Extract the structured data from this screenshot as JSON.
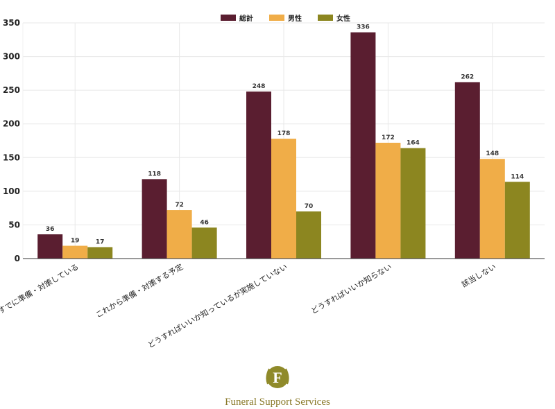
{
  "chart_data": {
    "type": "bar",
    "categories": [
      "すでに準備・対策している",
      "これから準備・対策する予定",
      "どうすればいいか知っているが実施していない",
      "どうすればいいか知らない",
      "該当しない"
    ],
    "series": [
      {
        "name": "総計",
        "values": [
          36,
          118,
          248,
          336,
          262
        ],
        "color": "#5a1e30"
      },
      {
        "name": "男性",
        "values": [
          19,
          72,
          178,
          172,
          148
        ],
        "color": "#f0ad48"
      },
      {
        "name": "女性",
        "values": [
          17,
          46,
          70,
          164,
          114
        ],
        "color": "#8c8620"
      }
    ],
    "ylim": [
      0,
      350
    ],
    "yticks": [
      0,
      50,
      100,
      150,
      200,
      250,
      300,
      350
    ],
    "grid": true,
    "legend_position": "top-center"
  },
  "logo": {
    "letter": "F",
    "text": "Funeral Support Services"
  }
}
